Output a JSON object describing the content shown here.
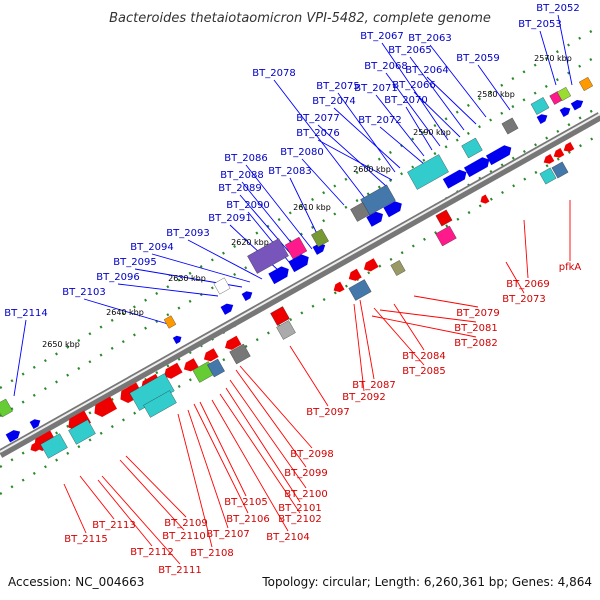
{
  "title": "Bacteroides thetaiotaomicron VPI-5482, complete genome",
  "footer": {
    "accession": "Accession: NC_004663",
    "summary": "Topology: circular; Length: 6,260,361 bp; Genes: 4,864"
  },
  "colors": {
    "backbone_dark": "#888888",
    "backbone_light": "#dddddd",
    "forward_gene": "#0000ee",
    "reverse_gene": "#ee0000",
    "tick": "#2a8a2a",
    "forward_label": "#0000c8",
    "reverse_label": "#d40000",
    "callout": "#ff0000"
  },
  "kbp_ticks": [
    "2570 kbp",
    "2580 kbp",
    "2590 kbp",
    "2600 kbp",
    "2610 kbp",
    "2620 kbp",
    "2630 kbp",
    "2640 kbp",
    "2650 kbp"
  ],
  "forward_labels": [
    "BT_2052",
    "BT_2053",
    "BT_2059",
    "BT_2063",
    "BT_2064",
    "BT_2065",
    "BT_2066",
    "BT_2067",
    "BT_2068",
    "BT_2070",
    "BT_2071",
    "BT_2072",
    "BT_2074",
    "BT_2075",
    "BT_2076",
    "BT_2077",
    "BT_2078",
    "BT_2080",
    "BT_2083",
    "BT_2086",
    "BT_2088",
    "BT_2089",
    "BT_2090",
    "BT_2091",
    "BT_2093",
    "BT_2094",
    "BT_2095",
    "BT_2096",
    "BT_2103",
    "BT_2114"
  ],
  "reverse_labels": [
    "pfkA",
    "BT_2069",
    "BT_2073",
    "BT_2079",
    "BT_2081",
    "BT_2082",
    "BT_2084",
    "BT_2085",
    "BT_2087",
    "BT_2092",
    "BT_2097",
    "BT_2098",
    "BT_2099",
    "BT_2100",
    "BT_2101",
    "BT_2102",
    "BT_2104",
    "BT_2105",
    "BT_2106",
    "BT_2107",
    "BT_2108",
    "BT_2109",
    "BT_2110",
    "BT_2111",
    "BT_2112",
    "BT_2113",
    "BT_2115"
  ]
}
